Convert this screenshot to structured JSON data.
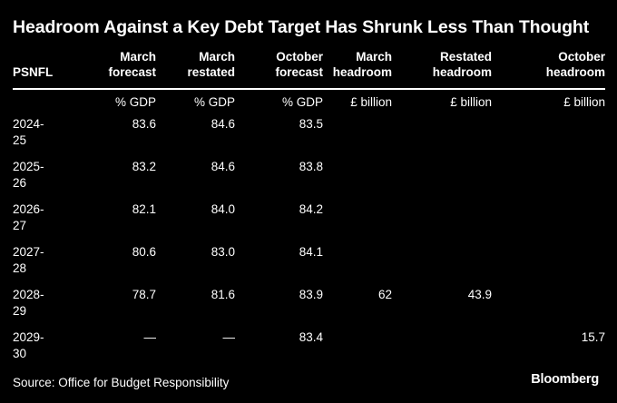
{
  "title": "Headroom Against a Key Debt Target Has Shrunk Less Than Thought",
  "columns": [
    {
      "line1": "",
      "line2": "PSNFL"
    },
    {
      "line1": "March",
      "line2": "forecast"
    },
    {
      "line1": "March",
      "line2": "restated"
    },
    {
      "line1": "October",
      "line2": "forecast"
    },
    {
      "line1": "March",
      "line2": "headroom"
    },
    {
      "line1": "Restated",
      "line2": "headroom"
    },
    {
      "line1": "October",
      "line2": "headroom"
    }
  ],
  "units": [
    "",
    "% GDP",
    "% GDP",
    "% GDP",
    "£ billion",
    "£ billion",
    "£ billion"
  ],
  "rows": [
    {
      "year_a": "2024-",
      "year_b": "25",
      "march_forecast": "83.6",
      "march_restated": "84.6",
      "october_forecast": "83.5",
      "march_headroom": "",
      "restated_headroom": "",
      "october_headroom": ""
    },
    {
      "year_a": "2025-",
      "year_b": "26",
      "march_forecast": "83.2",
      "march_restated": "84.6",
      "october_forecast": "83.8",
      "march_headroom": "",
      "restated_headroom": "",
      "october_headroom": ""
    },
    {
      "year_a": "2026-",
      "year_b": "27",
      "march_forecast": "82.1",
      "march_restated": "84.0",
      "october_forecast": "84.2",
      "march_headroom": "",
      "restated_headroom": "",
      "october_headroom": ""
    },
    {
      "year_a": "2027-",
      "year_b": "28",
      "march_forecast": "80.6",
      "march_restated": "83.0",
      "october_forecast": "84.1",
      "march_headroom": "",
      "restated_headroom": "",
      "october_headroom": ""
    },
    {
      "year_a": "2028-",
      "year_b": "29",
      "march_forecast": "78.7",
      "march_restated": "81.6",
      "october_forecast": "83.9",
      "march_headroom": "62",
      "restated_headroom": "43.9",
      "october_headroom": ""
    },
    {
      "year_a": "2029-",
      "year_b": "30",
      "march_forecast": "—",
      "march_restated": "—",
      "october_forecast": "83.4",
      "march_headroom": "",
      "restated_headroom": "",
      "october_headroom": "15.7"
    }
  ],
  "source": "Source: Office for Budget Responsibility",
  "brand": "Bloomberg"
}
